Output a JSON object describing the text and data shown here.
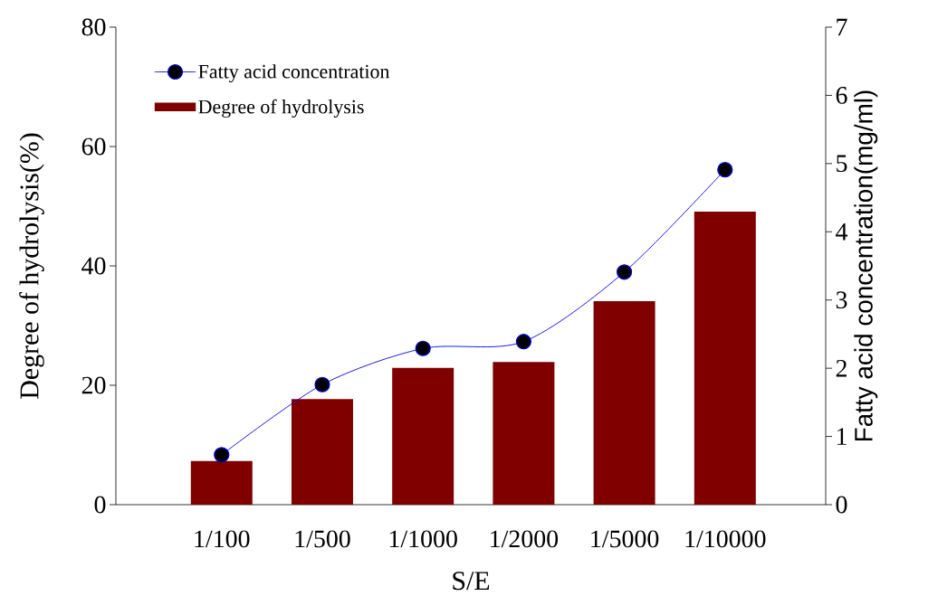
{
  "chart_data": {
    "type": "bar",
    "xlabel": "S/E",
    "ylabel": "Degree of hydrolysis(%)",
    "y2label": "Fatty acid concentration(mg/ml)",
    "categories": [
      "1/100",
      "1/500",
      "1/1000",
      "1/2000",
      "1/5000",
      "1/10000"
    ],
    "series": [
      {
        "name": "Fatty acid concentration",
        "type": "line",
        "axis": "y2",
        "color": "#0000ff",
        "values": [
          0.73,
          1.76,
          2.29,
          2.39,
          3.41,
          4.91
        ]
      },
      {
        "name": "Degree of hydrolysis",
        "color": "#800000",
        "values": [
          7.3,
          17.7,
          22.9,
          23.9,
          34.1,
          49.1
        ]
      }
    ],
    "ylim": [
      0,
      80
    ],
    "yticks": [
      0,
      20,
      40,
      60,
      80
    ],
    "y2lim": [
      0,
      7
    ],
    "y2ticks": [
      0,
      1,
      2,
      3,
      4,
      5,
      6,
      7
    ],
    "legend": "top left",
    "marker": "circle",
    "line_style": "solid"
  }
}
